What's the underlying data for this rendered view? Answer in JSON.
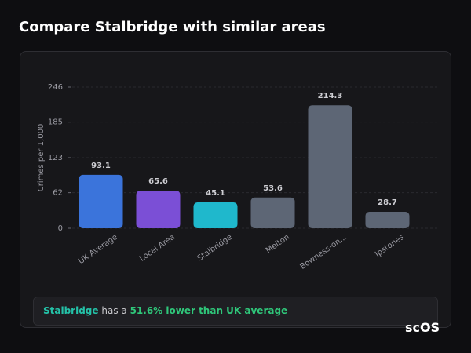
{
  "chart_data": {
    "type": "bar",
    "title": "Compare Stalbridge with similar areas",
    "y_label": "Crimes per 1,000",
    "categories": [
      "UK Average",
      "Local Area",
      "Stalbridge",
      "Melton",
      "Bowness-on...",
      "Ipstones"
    ],
    "values": [
      93.1,
      65.6,
      45.1,
      53.6,
      214.3,
      28.7
    ],
    "colors": [
      "#3b74db",
      "#7b4fd6",
      "#1fb8cc",
      "#5d6675",
      "#5d6675",
      "#5d6675"
    ],
    "ylim": [
      0,
      246
    ],
    "yticks": [
      0,
      62,
      123,
      185,
      246
    ],
    "grid": true
  },
  "summary": {
    "area": "Stalbridge",
    "text": "has a",
    "highlight": "51.6% lower than UK average"
  },
  "brand": "scOS"
}
